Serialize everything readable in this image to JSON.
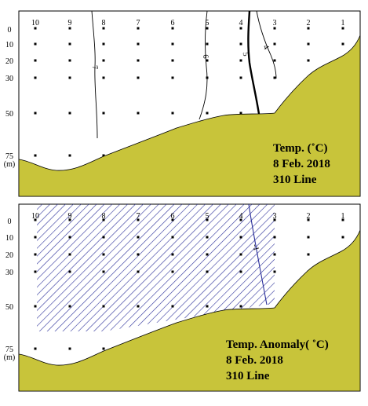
{
  "chart_data": [
    {
      "type": "section",
      "panel": "top",
      "title_lines": [
        "Temp. (˚C)",
        "8 Feb. 2018",
        "310 Line"
      ],
      "stations": [
        "10",
        "9",
        "8",
        "7",
        "6",
        "5",
        "4",
        "3",
        "2",
        "1"
      ],
      "depth_ticks": [
        "0",
        "10",
        "20",
        "30",
        "50",
        "75"
      ],
      "depth_unit": "(m)",
      "contours": [
        {
          "label": "7",
          "bold": false
        },
        {
          "label": "6",
          "bold": false
        },
        {
          "label": "5",
          "bold": true
        },
        {
          "label": "4",
          "bold": false
        }
      ],
      "bottom_color": "#c8c43a"
    },
    {
      "type": "section",
      "panel": "bottom",
      "title_lines": [
        "Temp. Anomaly( ˚C)",
        "8 Feb. 2018",
        "310 Line"
      ],
      "stations": [
        "10",
        "9",
        "8",
        "7",
        "6",
        "5",
        "4",
        "3",
        "2",
        "1"
      ],
      "depth_ticks": [
        "0",
        "10",
        "20",
        "30",
        "50",
        "75"
      ],
      "depth_unit": "(m)",
      "contours": [
        {
          "label": "-1",
          "bold": false
        }
      ],
      "hatch_color": "#2b2f9a",
      "hatched_region": "anomaly below -1 ˚C",
      "bottom_color": "#c8c43a"
    }
  ]
}
